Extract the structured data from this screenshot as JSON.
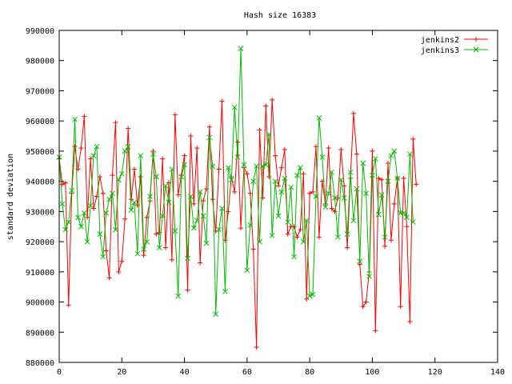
{
  "chart_data": {
    "type": "line",
    "title": "Hash size 16383",
    "xlabel": "",
    "ylabel": "standard deviation",
    "xlim": [
      0,
      140
    ],
    "ylim": [
      880000,
      990000
    ],
    "x_ticks": [
      "0",
      "20",
      "40",
      "60",
      "80",
      "100",
      "120",
      "140"
    ],
    "y_ticks": [
      "880000",
      "890000",
      "900000",
      "910000",
      "920000",
      "930000",
      "940000",
      "950000",
      "960000",
      "970000",
      "980000",
      "990000"
    ],
    "grid": false,
    "legend_position": "top-right",
    "series": [
      {
        "name": "jenkins2",
        "color": "#ff0000",
        "marker": "plus",
        "values": [
          947500,
          939000,
          939500,
          899000,
          936000,
          951500,
          944000,
          951000,
          961500,
          928000,
          947500,
          931000,
          935000,
          941500,
          936000,
          917000,
          908000,
          942000,
          959500,
          910000,
          913500,
          927500,
          957500,
          934000,
          944000,
          932000,
          941500,
          915500,
          928000,
          933500,
          950000,
          922500,
          923000,
          947500,
          918000,
          939500,
          914000,
          962000,
          935500,
          942000,
          948500,
          904000,
          955000,
          932500,
          951000,
          913000,
          933500,
          937500,
          958000,
          934000,
          923500,
          944000,
          966500,
          920500,
          930000,
          941500,
          936500,
          953000,
          924500,
          944500,
          942500,
          936000,
          917500,
          885000,
          957000,
          934500,
          965000,
          941500,
          967000,
          948500,
          938500,
          944500,
          950500,
          922500,
          925000,
          925000,
          921500,
          924000,
          942500,
          901000,
          936000,
          936500,
          951500,
          921500,
          940000,
          932500,
          951000,
          931000,
          930000,
          934500,
          950500,
          938500,
          918000,
          941000,
          962500,
          949000,
          912500,
          898500,
          900000,
          910000,
          950000,
          890500,
          941000,
          940500,
          918500,
          946000,
          920500,
          932500,
          941000,
          898500,
          941000,
          925000,
          893500,
          954000,
          939000
        ]
      },
      {
        "name": "jenkins3",
        "color": "#00bb00",
        "marker": "x",
        "values": [
          948000,
          932500,
          924000,
          926500,
          937000,
          960500,
          928000,
          925000,
          929500,
          920000,
          932000,
          948500,
          951500,
          922500,
          915000,
          929500,
          934000,
          936000,
          924000,
          940500,
          942500,
          950000,
          951500,
          930500,
          933000,
          916000,
          948500,
          917500,
          920000,
          935000,
          949000,
          941500,
          918000,
          928500,
          938500,
          933000,
          944000,
          923500,
          902000,
          941500,
          945500,
          914500,
          935000,
          924500,
          927000,
          936500,
          928500,
          919500,
          954500,
          945000,
          896000,
          924000,
          931000,
          903500,
          944500,
          940500,
          964500,
          948000,
          984000,
          945500,
          910500,
          925500,
          940000,
          945000,
          920000,
          945000,
          945500,
          955500,
          922000,
          940000,
          928500,
          936500,
          941000,
          926500,
          938000,
          915000,
          942000,
          944500,
          920000,
          927000,
          902000,
          902500,
          935000,
          961000,
          948000,
          931500,
          936000,
          943000,
          934500,
          921500,
          940500,
          934500,
          922500,
          943000,
          927000,
          937500,
          913500,
          946000,
          936000,
          908500,
          942000,
          947500,
          929000,
          935500,
          921500,
          940000,
          948500,
          950000,
          941000,
          929500,
          929500,
          928000,
          949000,
          926500
        ]
      }
    ]
  }
}
